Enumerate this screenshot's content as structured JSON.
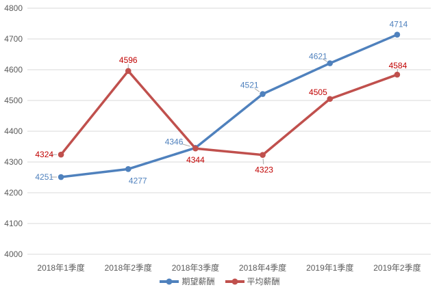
{
  "chart_data": {
    "type": "line",
    "categories": [
      "2018年1季度",
      "2018年2季度",
      "2018年3季度",
      "2018年4季度",
      "2019年1季度",
      "2019年2季度"
    ],
    "series": [
      {
        "name": "期望薪酬",
        "values": [
          4251,
          4277,
          4346,
          4521,
          4621,
          4714
        ],
        "color": "#4f81bd",
        "label_color": "#4f81bd",
        "label_placements": [
          {
            "anchor": "end",
            "dx": -11,
            "dy": 4,
            "leader": true
          },
          {
            "anchor": "middle",
            "dx": 14,
            "dy": 21,
            "leader": false
          },
          {
            "anchor": "end",
            "dx": -18,
            "dy": -5,
            "leader": true
          },
          {
            "anchor": "end",
            "dx": -6,
            "dy": -9,
            "leader": true
          },
          {
            "anchor": "end",
            "dx": -4,
            "dy": -6,
            "leader": true
          },
          {
            "anchor": "middle",
            "dx": 2,
            "dy": -11,
            "leader": false
          }
        ]
      },
      {
        "name": "平均薪酬",
        "values": [
          4324,
          4596,
          4344,
          4323,
          4505,
          4584
        ],
        "color": "#c0504d",
        "label_color": "#c00000",
        "label_placements": [
          {
            "anchor": "end",
            "dx": -11,
            "dy": 4,
            "leader": true
          },
          {
            "anchor": "middle",
            "dx": 0,
            "dy": -12,
            "leader": true
          },
          {
            "anchor": "middle",
            "dx": 0,
            "dy": 21,
            "leader": false
          },
          {
            "anchor": "middle",
            "dx": 2,
            "dy": 26,
            "leader": true
          },
          {
            "anchor": "end",
            "dx": -4,
            "dy": -6,
            "leader": false
          },
          {
            "anchor": "middle",
            "dx": 1,
            "dy": -9,
            "leader": true
          }
        ]
      }
    ],
    "title": "",
    "xlabel": "",
    "ylabel": "",
    "ylim": [
      4000,
      4800
    ],
    "yticks": [
      4000,
      4100,
      4200,
      4300,
      4400,
      4500,
      4600,
      4700,
      4800
    ],
    "grid": "horizontal",
    "gridline_color": "#d9d9d9",
    "axis_text_color": "#595959",
    "leader_color": "#a6a6a6",
    "legend_position": "bottom-center",
    "legend_labels": [
      "期望薪酬",
      "平均薪酬"
    ]
  }
}
